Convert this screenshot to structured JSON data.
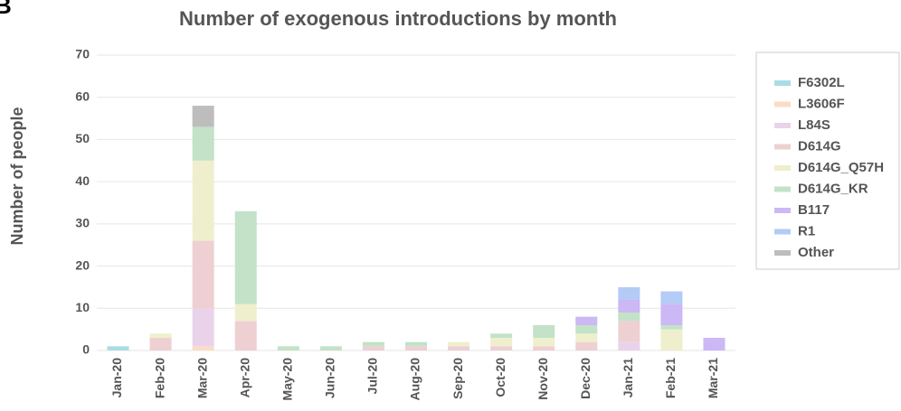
{
  "chart_data": {
    "type": "stacked_bar",
    "panel_label": "B",
    "title": "Number of exogenous introductions by month",
    "y_label": "Number of people",
    "categories": [
      "Jan-20",
      "Feb-20",
      "Mar-20",
      "Apr-20",
      "May-20",
      "Jun-20",
      "Jul-20",
      "Aug-20",
      "Sep-20",
      "Oct-20",
      "Nov-20",
      "Dec-20",
      "Jan-21",
      "Feb-21",
      "Mar-21"
    ],
    "series": [
      {
        "name": "F6302L",
        "color": "#a9dde4",
        "values": [
          1,
          0,
          0,
          0,
          0,
          0,
          0,
          0,
          0,
          0,
          0,
          0,
          0,
          0,
          0
        ]
      },
      {
        "name": "L3606F",
        "color": "#fbdcc6",
        "values": [
          0,
          0,
          1,
          0,
          0,
          0,
          0,
          0,
          0,
          0,
          0,
          0,
          0,
          0,
          0
        ]
      },
      {
        "name": "L84S",
        "color": "#ead3ea",
        "values": [
          0,
          0,
          9,
          0,
          0,
          0,
          0,
          0,
          0,
          0,
          0,
          0,
          2,
          0,
          0
        ]
      },
      {
        "name": "D614G",
        "color": "#eed0d3",
        "values": [
          0,
          3,
          16,
          7,
          0,
          0,
          1,
          1,
          1,
          1,
          1,
          2,
          5,
          0,
          0
        ]
      },
      {
        "name": "D614G_Q57H",
        "color": "#efefcd",
        "values": [
          0,
          1,
          19,
          4,
          0,
          0,
          0,
          0,
          1,
          2,
          2,
          2,
          0,
          5,
          0
        ]
      },
      {
        "name": "D614G_KR",
        "color": "#c3e2c8",
        "values": [
          0,
          0,
          8,
          22,
          1,
          1,
          1,
          1,
          0,
          1,
          3,
          2,
          2,
          1,
          0
        ]
      },
      {
        "name": "B117",
        "color": "#cbb8f5",
        "values": [
          0,
          0,
          0,
          0,
          0,
          0,
          0,
          0,
          0,
          0,
          0,
          2,
          3,
          5,
          3
        ]
      },
      {
        "name": "R1",
        "color": "#b3cbf5",
        "values": [
          0,
          0,
          0,
          0,
          0,
          0,
          0,
          0,
          0,
          0,
          0,
          0,
          3,
          3,
          0
        ]
      },
      {
        "name": "Other",
        "color": "#bdbdbd",
        "values": [
          0,
          0,
          5,
          0,
          0,
          0,
          0,
          0,
          0,
          0,
          0,
          0,
          0,
          0,
          0
        ]
      }
    ],
    "ylim": [
      0,
      70
    ],
    "yticks": [
      0,
      10,
      20,
      30,
      40,
      50,
      60,
      70
    ],
    "grid": true,
    "legend": "right"
  }
}
